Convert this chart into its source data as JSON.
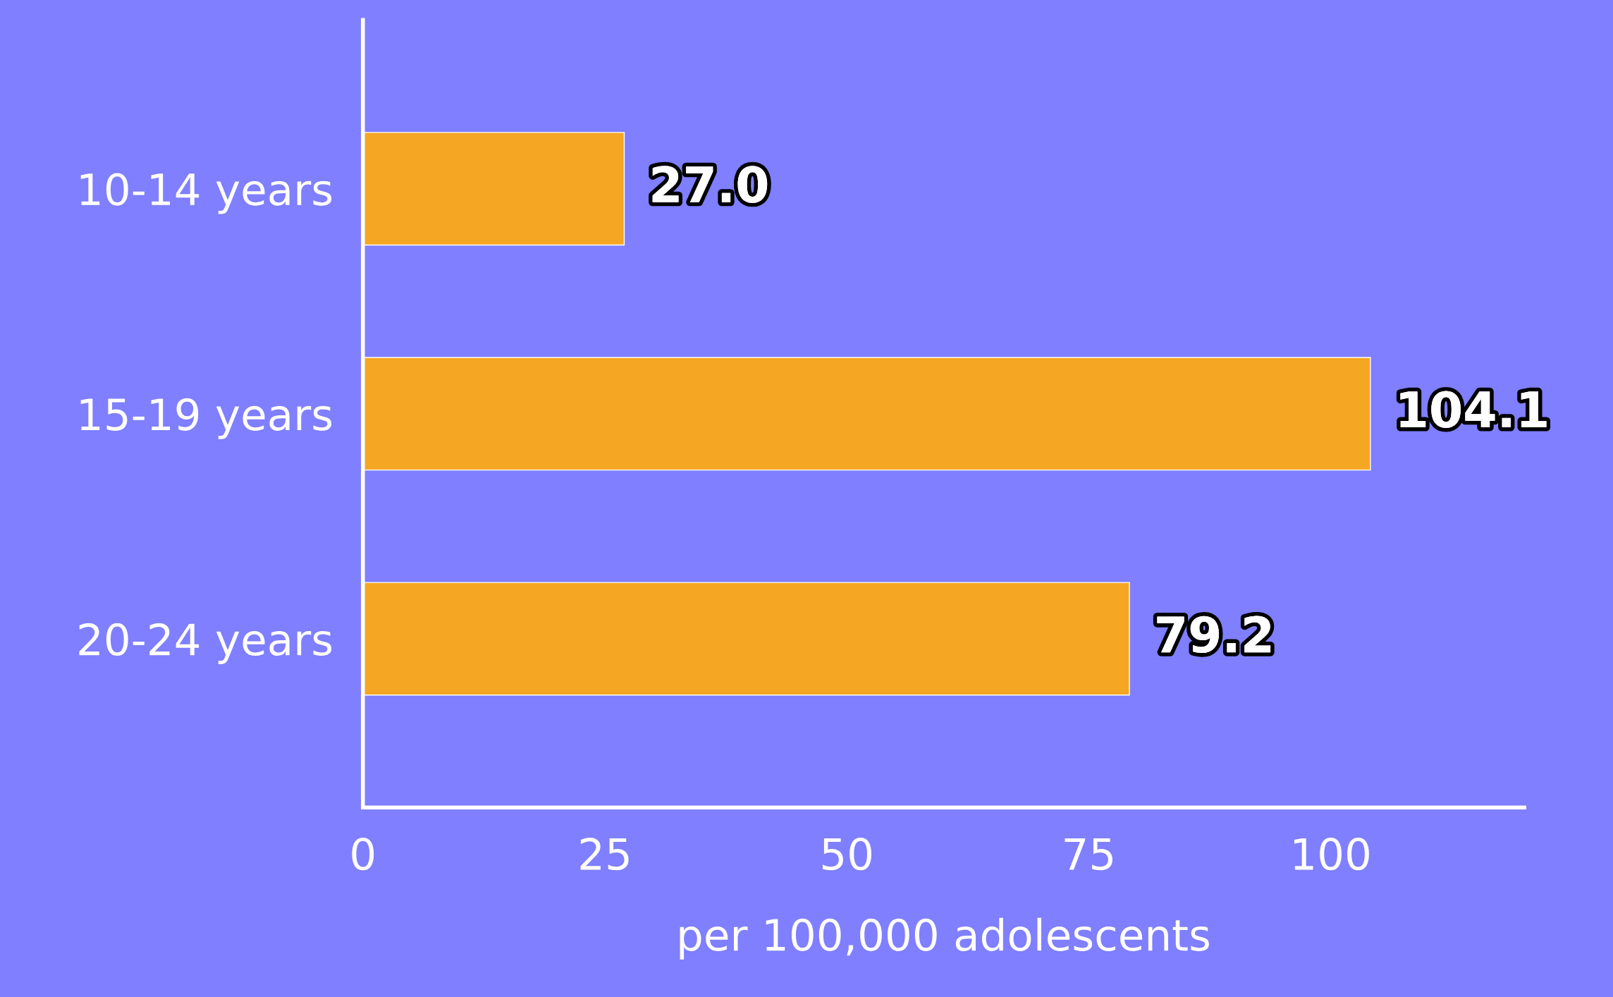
{
  "chart_data": {
    "type": "bar",
    "orientation": "horizontal",
    "categories": [
      "10-14 years",
      "15-19 years",
      "20-24 years"
    ],
    "values": [
      27.0,
      104.1,
      79.2
    ],
    "value_labels": [
      "27.0",
      "104.1",
      "79.2"
    ],
    "color": "#f5a623",
    "xlabel": "per 100,000 adolescents",
    "xlim": [
      0,
      120
    ],
    "xticks": [
      0,
      25,
      50,
      75,
      100
    ],
    "grid": false,
    "legend": false
  }
}
